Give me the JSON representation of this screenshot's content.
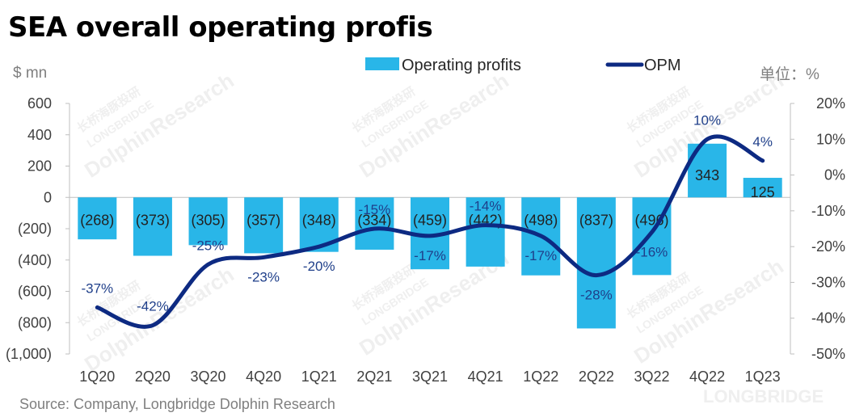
{
  "title": "SEA overall operating profis",
  "left_unit": "$ mn",
  "right_unit": "单位：%",
  "source": "Source: Company, Longbridge Dolphin Research",
  "watermark": {
    "cn": "长桥海豚投研",
    "en1": "LONGBRIDGE",
    "en2": "DolphinResearch",
    "logo": "LONGBRIDGE"
  },
  "colors": {
    "bar": "#29b6e8",
    "line": "#0d2a82",
    "line_label": "#1f3f8a"
  },
  "chart_data": {
    "type": "bar",
    "categories": [
      "1Q20",
      "2Q20",
      "3Q20",
      "4Q20",
      "1Q21",
      "2Q21",
      "3Q21",
      "4Q21",
      "1Q22",
      "2Q22",
      "3Q22",
      "4Q22",
      "1Q23"
    ],
    "series": [
      {
        "name": "Operating profits",
        "type": "bar",
        "axis": "left",
        "values": [
          -268,
          -373,
          -305,
          -357,
          -348,
          -334,
          -459,
          -442,
          -498,
          -837,
          -496,
          343,
          125
        ],
        "labels": [
          "(268)",
          "(373)",
          "(305)",
          "(357)",
          "(348)",
          "(334)",
          "(459)",
          "(442)",
          "(498)",
          "(837)",
          "(496)",
          "343",
          "125"
        ]
      },
      {
        "name": "OPM",
        "type": "line",
        "axis": "right",
        "values": [
          -37,
          -42,
          -25,
          -23,
          -20,
          -15,
          -17,
          -14,
          -17,
          -28,
          -16,
          10,
          4
        ],
        "labels": [
          "-37%",
          "-42%",
          "-25%",
          "-23%",
          "-20%",
          "-15%",
          "-17%",
          "-14%",
          "-17%",
          "-28%",
          "-16%",
          "10%",
          "4%"
        ]
      }
    ],
    "left_axis": {
      "range": [
        -1000,
        600
      ],
      "ticks": [
        600,
        400,
        200,
        0,
        -200,
        -400,
        -600,
        -800,
        -1000
      ],
      "tick_labels": [
        "600",
        "400",
        "200",
        "0",
        "(200)",
        "(400)",
        "(600)",
        "(800)",
        "(1,000)"
      ]
    },
    "right_axis": {
      "range": [
        -50,
        20
      ],
      "ticks": [
        20,
        10,
        0,
        -10,
        -20,
        -30,
        -40,
        -50
      ],
      "tick_labels": [
        "20%",
        "10%",
        "0%",
        "-10%",
        "-20%",
        "-30%",
        "-40%",
        "-50%"
      ]
    },
    "grid": false,
    "legend": "top-center"
  }
}
